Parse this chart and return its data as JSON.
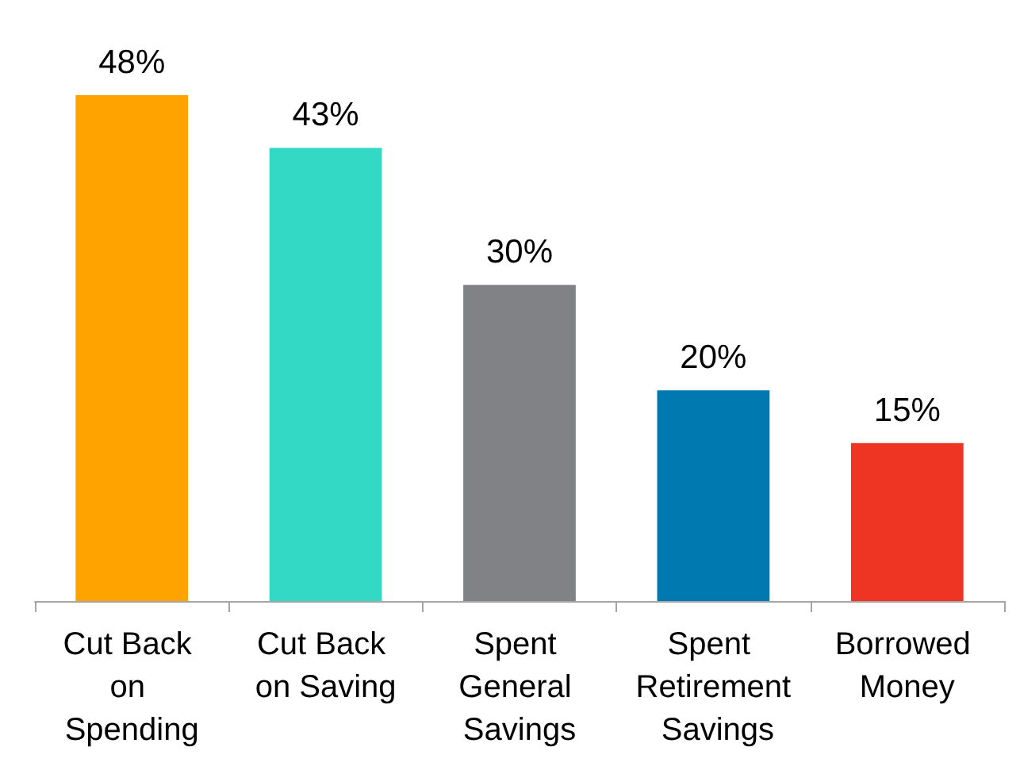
{
  "chart_data": {
    "type": "bar",
    "categories": [
      "Cut Back on Spending",
      "Cut Back on Saving",
      "Spent General Savings",
      "Spent Retirement Savings",
      "Borrowed Money"
    ],
    "values": [
      48,
      43,
      30,
      20,
      15
    ],
    "colors": [
      "#ffa300",
      "#33d9c5",
      "#808285",
      "#0079b0",
      "#ee3524"
    ],
    "value_labels": [
      "48%",
      "43%",
      "30%",
      "20%",
      "15%"
    ]
  }
}
